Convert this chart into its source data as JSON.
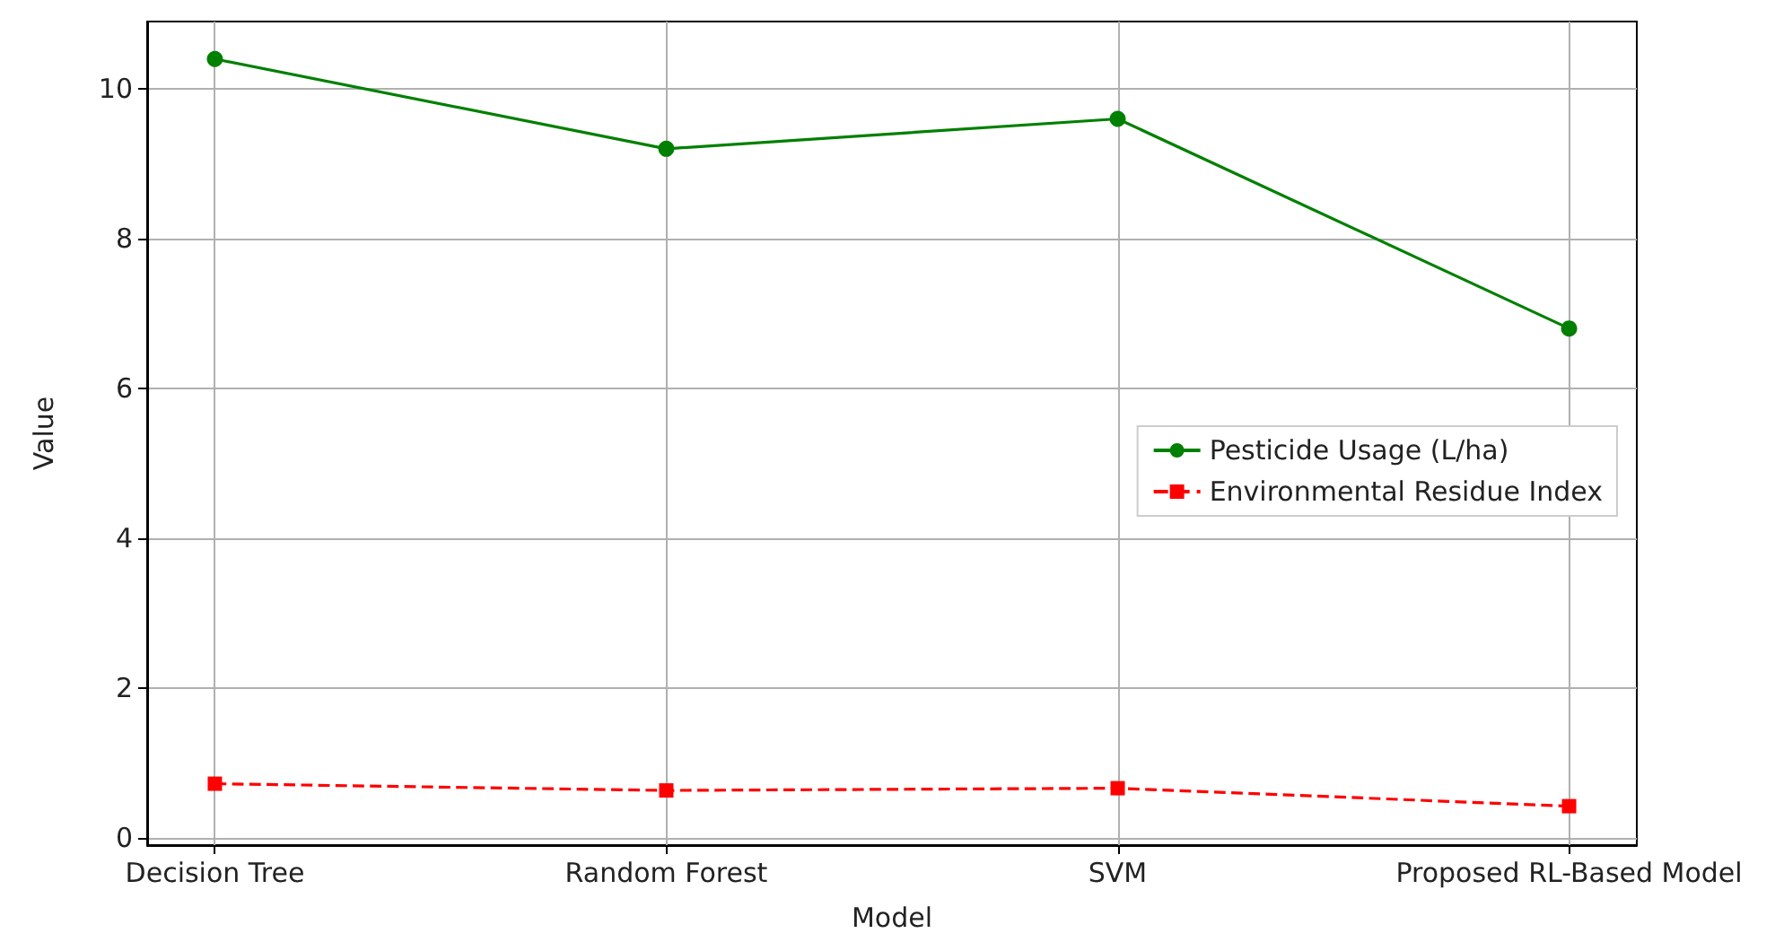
{
  "chart_data": {
    "type": "line",
    "xlabel": "Model",
    "ylabel": "Value",
    "categories": [
      "Decision Tree",
      "Random Forest",
      "SVM",
      "Proposed RL-Based Model"
    ],
    "series": [
      {
        "name": "Pesticide Usage (L/ha)",
        "color": "#008000",
        "values": [
          10.4,
          9.2,
          9.6,
          6.8
        ],
        "marker": "circle",
        "line_style": "solid"
      },
      {
        "name": "Environmental Residue Index",
        "color": "#ff0000",
        "values": [
          0.72,
          0.63,
          0.66,
          0.42
        ],
        "marker": "square",
        "line_style": "dashed"
      }
    ],
    "ylim": [
      -0.1,
      10.9
    ],
    "yticks": [
      0,
      2,
      4,
      6,
      8,
      10
    ],
    "grid": true,
    "legend": "right"
  }
}
